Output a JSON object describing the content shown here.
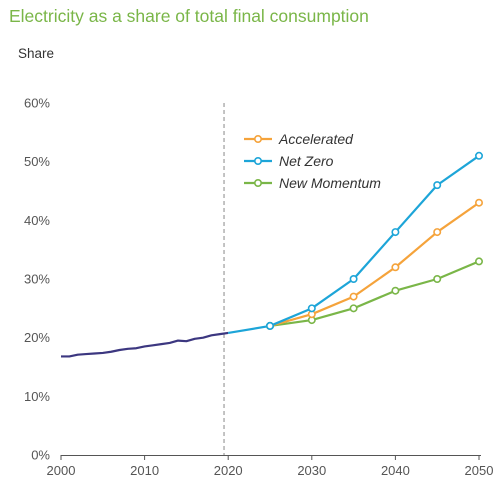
{
  "chart_data": {
    "type": "line",
    "title": "Electricity as a share of total final consumption",
    "ylabel": "Share",
    "xlabel": "",
    "xlim": [
      2000,
      2050
    ],
    "ylim": [
      0,
      60
    ],
    "x_ticks": [
      "2000",
      "2010",
      "2020",
      "2030",
      "2040",
      "2050"
    ],
    "y_ticks": [
      "0%",
      "10%",
      "20%",
      "30%",
      "40%",
      "50%",
      "60%"
    ],
    "projection_start": 2019.5,
    "history": {
      "color": "#3c3780",
      "points": [
        [
          2000,
          16.8
        ],
        [
          2001,
          16.8
        ],
        [
          2002,
          17.1
        ],
        [
          2003,
          17.2
        ],
        [
          2004,
          17.3
        ],
        [
          2005,
          17.4
        ],
        [
          2006,
          17.6
        ],
        [
          2007,
          17.9
        ],
        [
          2008,
          18.1
        ],
        [
          2009,
          18.2
        ],
        [
          2010,
          18.5
        ],
        [
          2011,
          18.7
        ],
        [
          2012,
          18.9
        ],
        [
          2013,
          19.1
        ],
        [
          2014,
          19.5
        ],
        [
          2015,
          19.4
        ],
        [
          2016,
          19.8
        ],
        [
          2017,
          20.0
        ],
        [
          2018,
          20.4
        ],
        [
          2019,
          20.6
        ],
        [
          2020,
          20.8
        ]
      ]
    },
    "projection_common": {
      "color": "#1da5d8",
      "points": [
        [
          2020,
          20.8
        ],
        [
          2025,
          22
        ]
      ]
    },
    "series": [
      {
        "name": "Accelerated",
        "color": "#f5a33b",
        "x": [
          2025,
          2030,
          2035,
          2040,
          2045,
          2050
        ],
        "values": [
          22,
          24,
          27,
          32,
          38,
          43
        ]
      },
      {
        "name": "Net Zero",
        "color": "#1da5d8",
        "x": [
          2025,
          2030,
          2035,
          2040,
          2045,
          2050
        ],
        "values": [
          22,
          25,
          30,
          38,
          46,
          51
        ]
      },
      {
        "name": "New Momentum",
        "color": "#7ab648",
        "x": [
          2025,
          2030,
          2035,
          2040,
          2045,
          2050
        ],
        "values": [
          22,
          23,
          25,
          28,
          30,
          33
        ]
      }
    ],
    "legend_position": "top-right",
    "grid": false
  }
}
